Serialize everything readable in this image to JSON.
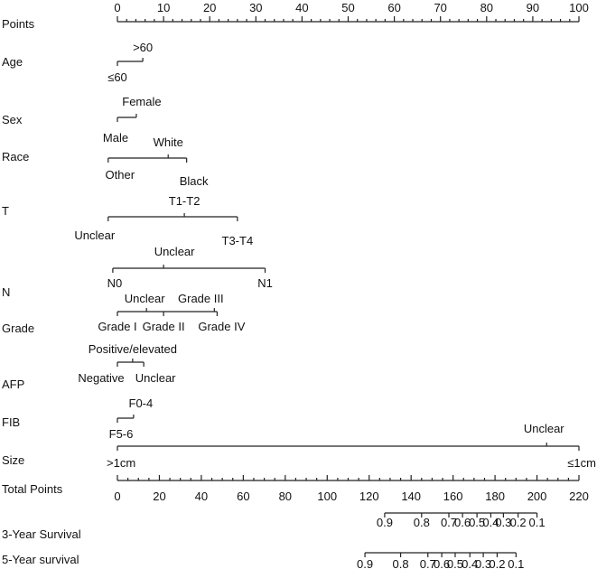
{
  "chart_data": {
    "type": "nomogram",
    "points_axis": {
      "label": "Points",
      "range": [
        0,
        100
      ],
      "major_ticks": [
        0,
        10,
        20,
        30,
        40,
        50,
        60,
        70,
        80,
        90,
        100
      ],
      "minor_step": 2
    },
    "variables": [
      {
        "name": "Age",
        "levels": [
          {
            "label": "≤60",
            "points": 0
          },
          {
            "label": ">60",
            "points": 5.5
          }
        ]
      },
      {
        "name": "Sex",
        "levels": [
          {
            "label": "Male",
            "points": 0
          },
          {
            "label": "Female",
            "points": 4.1
          }
        ]
      },
      {
        "name": "Race",
        "levels": [
          {
            "label": "Other",
            "points": -2
          },
          {
            "label": "White",
            "points": 11
          },
          {
            "label": "Black",
            "points": 15
          }
        ]
      },
      {
        "name": "T",
        "levels": [
          {
            "label": "Unclear",
            "points": -2
          },
          {
            "label": "T1-T2",
            "points": 14.5
          },
          {
            "label": "T3-T4",
            "points": 26
          }
        ]
      },
      {
        "name": "N",
        "levels": [
          {
            "label": "N0",
            "points": -1
          },
          {
            "label": "Unclear",
            "points": 10
          },
          {
            "label": "N1",
            "points": 32
          }
        ]
      },
      {
        "name": "Grade",
        "levels": [
          {
            "label": "Grade I",
            "points": 0
          },
          {
            "label": "Unclear",
            "points": 6.3
          },
          {
            "label": "Grade II",
            "points": 10
          },
          {
            "label": "Grade III",
            "points": 21
          },
          {
            "label": "Grade IV",
            "points": 21.6
          }
        ]
      },
      {
        "name": "AFP",
        "levels": [
          {
            "label": "Negative",
            "points": 0
          },
          {
            "label": "Positive/elevated",
            "points": 3.3
          },
          {
            "label": "Unclear",
            "points": 5.7
          }
        ]
      },
      {
        "name": "FIB",
        "levels": [
          {
            "label": "F5-6",
            "points": 0
          },
          {
            "label": "F0-4",
            "points": 3.5
          }
        ]
      },
      {
        "name": "Size",
        "levels": [
          {
            "label": ">1cm",
            "points": 0
          },
          {
            "label": "Unclear",
            "points": 93
          },
          {
            "label": "≤1cm",
            "points": 100
          }
        ]
      }
    ],
    "total_points_axis": {
      "label": "Total Points",
      "range": [
        0,
        220
      ],
      "major_ticks": [
        0,
        20,
        40,
        60,
        80,
        100,
        120,
        140,
        160,
        180,
        200,
        220
      ],
      "minor_step": 5
    },
    "survival_axes": [
      {
        "label": "3-Year Survival",
        "ticks": [
          {
            "label": "0.9",
            "total_points": 127.4
          },
          {
            "label": "0.8",
            "total_points": 145
          },
          {
            "label": "0.7",
            "total_points": 158
          },
          {
            "label": "0.6",
            "total_points": 164.5
          },
          {
            "label": "0.5",
            "total_points": 171.4
          },
          {
            "label": "0.4",
            "total_points": 178
          },
          {
            "label": "0.3",
            "total_points": 184
          },
          {
            "label": "0.2",
            "total_points": 191
          },
          {
            "label": "0.1",
            "total_points": 200
          }
        ]
      },
      {
        "label": "5-Year survival",
        "ticks": [
          {
            "label": "0.9",
            "total_points": 118
          },
          {
            "label": "0.8",
            "total_points": 135
          },
          {
            "label": "0.7",
            "total_points": 148
          },
          {
            "label": "0.6",
            "total_points": 154.6
          },
          {
            "label": "0.5",
            "total_points": 161
          },
          {
            "label": "0.4",
            "total_points": 168
          },
          {
            "label": "0.3",
            "total_points": 174.4
          },
          {
            "label": "0.2",
            "total_points": 181
          },
          {
            "label": "0.1",
            "total_points": 190
          }
        ]
      }
    ]
  }
}
